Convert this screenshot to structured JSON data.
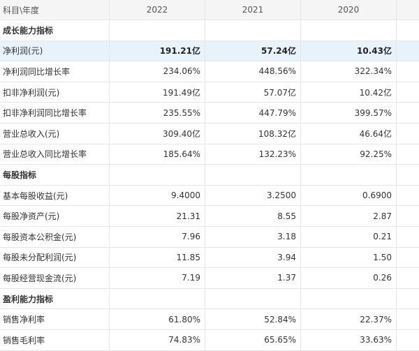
{
  "header": {
    "label": "科目\\年度",
    "years": [
      "2022",
      "2021",
      "2020"
    ]
  },
  "rows": [
    {
      "type": "section",
      "label": "成长能力指标",
      "values": [
        "",
        "",
        ""
      ]
    },
    {
      "type": "highlight",
      "label": "净利润(元)",
      "values": [
        "191.21亿",
        "57.24亿",
        "10.43亿"
      ]
    },
    {
      "type": "data",
      "label": "净利润同比增长率",
      "values": [
        "234.06%",
        "448.56%",
        "322.34%"
      ]
    },
    {
      "type": "data",
      "label": "扣非净利润(元)",
      "values": [
        "191.49亿",
        "57.07亿",
        "10.42亿"
      ]
    },
    {
      "type": "data",
      "label": "扣非净利润同比增长率",
      "values": [
        "235.55%",
        "447.79%",
        "399.57%"
      ]
    },
    {
      "type": "data",
      "label": "营业总收入(元)",
      "values": [
        "309.40亿",
        "108.32亿",
        "46.64亿"
      ]
    },
    {
      "type": "data",
      "label": "营业总收入同比增长率",
      "values": [
        "185.64%",
        "132.23%",
        "92.25%"
      ]
    },
    {
      "type": "section",
      "label": "每股指标",
      "values": [
        "",
        "",
        ""
      ]
    },
    {
      "type": "data",
      "label": "基本每股收益(元)",
      "values": [
        "9.4000",
        "3.2500",
        "0.6900"
      ]
    },
    {
      "type": "data",
      "label": "每股净资产(元)",
      "values": [
        "21.31",
        "8.55",
        "2.87"
      ]
    },
    {
      "type": "data",
      "label": "每股资本公积金(元)",
      "values": [
        "7.96",
        "3.18",
        "0.21"
      ]
    },
    {
      "type": "data",
      "label": "每股未分配利润(元)",
      "values": [
        "11.85",
        "3.94",
        "1.50"
      ]
    },
    {
      "type": "data",
      "label": "每股经营现金流(元)",
      "values": [
        "7.19",
        "1.37",
        "0.26"
      ]
    },
    {
      "type": "section",
      "label": "盈利能力指标",
      "values": [
        "",
        "",
        ""
      ]
    },
    {
      "type": "data",
      "label": "销售净利率",
      "values": [
        "61.80%",
        "52.84%",
        "22.37%"
      ]
    },
    {
      "type": "data",
      "label": "销售毛利率",
      "values": [
        "74.83%",
        "65.65%",
        "33.63%"
      ]
    }
  ],
  "colors": {
    "header_bg": "#f5f5f5",
    "highlight_bg": "#e8f2fb",
    "border": "#e6e6e6"
  }
}
